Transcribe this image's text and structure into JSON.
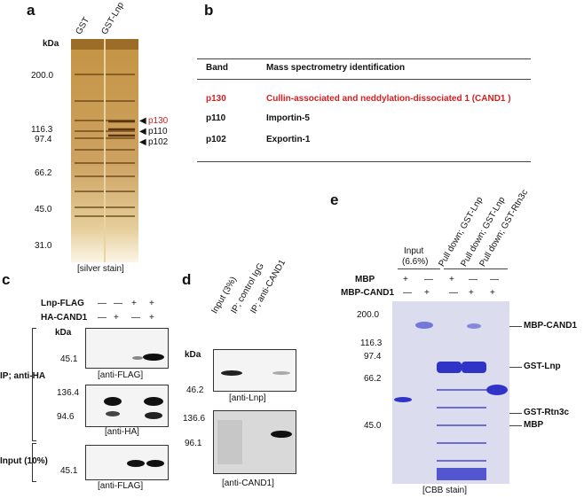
{
  "panels": {
    "a": {
      "letter": "a",
      "lanes": [
        "GST",
        "GST-Lnp"
      ],
      "unit": "kDa",
      "markers": [
        "200.0",
        "116.3",
        "97.4",
        "66.2",
        "45.0",
        "31.0"
      ],
      "bands": [
        "p130",
        "p110",
        "p102"
      ],
      "caption": "[silver stain]"
    },
    "b": {
      "letter": "b",
      "header": {
        "band": "Band",
        "id": "Mass spectrometry identification"
      },
      "rows": [
        {
          "band": "p130",
          "id": "Cullin-associated and neddylation-dissociated 1 (CAND1 )",
          "highlight": true
        },
        {
          "band": "p110",
          "id": "Importin-5",
          "highlight": false
        },
        {
          "band": "p102",
          "id": "Exportin-1",
          "highlight": false
        }
      ]
    },
    "c": {
      "letter": "c",
      "row1_label": "Lnp-FLAG",
      "row1_signs": [
        "—",
        "—",
        "+",
        "+"
      ],
      "row2_label": "HA-CAND1",
      "row2_signs": [
        "—",
        "+",
        "—",
        "+"
      ],
      "ip_label": "IP; anti-HA",
      "input_label": "Input (10%)",
      "unit": "kDa",
      "blot1_marker": "45.1",
      "blot1_caption": "[anti-FLAG]",
      "blot2_markers": [
        "136.4",
        "94.6"
      ],
      "blot2_caption": "[anti-HA]",
      "blot3_marker": "45.1",
      "blot3_caption": "[anti-FLAG]"
    },
    "d": {
      "letter": "d",
      "lanes": [
        "Input (3%)",
        "IP; control IgG",
        "IP; anti-CAND1"
      ],
      "unit": "kDa",
      "blot1_marker": "46.2",
      "blot1_caption": "[anti-Lnp]",
      "blot2_markers": [
        "136.6",
        "96.1"
      ],
      "blot2_caption": "[anti-CAND1]"
    },
    "e": {
      "letter": "e",
      "input_label": "Input",
      "input_pct": "(6.6%)",
      "pulldowns": [
        "Pull down; GST-Lnp",
        "Pull down; GST-Lnp",
        "Pull down; GST-Rtn3c"
      ],
      "mbp_label": "MBP",
      "mbp_signs": [
        "+",
        "—",
        "+",
        "—",
        "—"
      ],
      "cand_label": "MBP-CAND1",
      "cand_signs": [
        "—",
        "+",
        "—",
        "+",
        "+"
      ],
      "markers": [
        "200.0",
        "116.3",
        "97.4",
        "66.2",
        "45.0"
      ],
      "bands": [
        "MBP-CAND1",
        "GST-Lnp",
        "GST-Rtn3c",
        "MBP"
      ],
      "caption": "[CBB stain]"
    }
  },
  "colors": {
    "highlight": "#d41f1f",
    "gel_blue": "#3b3fd6",
    "silver": "#b98a3c"
  }
}
